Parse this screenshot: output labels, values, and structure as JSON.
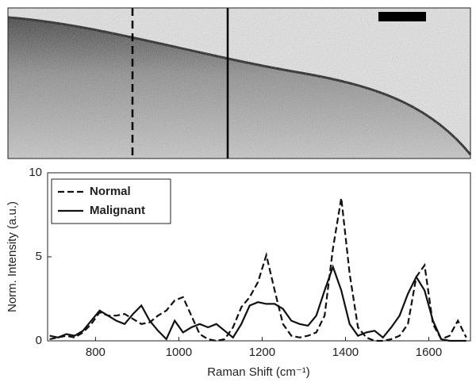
{
  "chart_data": {
    "type": "line",
    "xlabel": "Raman Shift (cm⁻¹)",
    "ylabel": "Norm. Intensity (a.u.)",
    "x": [
      690,
      710,
      730,
      750,
      770,
      790,
      810,
      830,
      850,
      870,
      890,
      910,
      930,
      950,
      970,
      990,
      1010,
      1030,
      1050,
      1070,
      1090,
      1110,
      1130,
      1150,
      1170,
      1190,
      1210,
      1230,
      1250,
      1270,
      1290,
      1310,
      1330,
      1350,
      1370,
      1390,
      1410,
      1430,
      1450,
      1470,
      1490,
      1510,
      1530,
      1550,
      1570,
      1590,
      1610,
      1630,
      1650,
      1670,
      1690
    ],
    "series": [
      {
        "name": "Normal",
        "color": "#111111",
        "dash": true,
        "values": [
          0.1,
          0.2,
          0.3,
          0.2,
          0.5,
          1.0,
          1.7,
          1.5,
          1.5,
          1.6,
          1.3,
          1.0,
          1.1,
          1.5,
          1.8,
          2.4,
          2.6,
          1.5,
          0.4,
          0.1,
          0.0,
          0.1,
          0.8,
          2.0,
          2.6,
          3.5,
          5.1,
          3.0,
          1.0,
          0.3,
          0.2,
          0.3,
          0.5,
          1.5,
          5.5,
          8.5,
          4.0,
          0.8,
          0.2,
          0.0,
          0.0,
          0.1,
          0.3,
          1.0,
          3.8,
          4.5,
          1.0,
          0.1,
          0.3,
          1.2,
          0.2
        ]
      },
      {
        "name": "Malignant",
        "color": "#111111",
        "dash": false,
        "values": [
          0.3,
          0.2,
          0.4,
          0.3,
          0.6,
          1.2,
          1.8,
          1.5,
          1.2,
          1.0,
          1.6,
          2.1,
          1.2,
          0.6,
          0.1,
          1.2,
          0.5,
          0.8,
          1.0,
          0.8,
          1.0,
          0.6,
          0.2,
          1.0,
          2.1,
          2.3,
          2.2,
          2.2,
          1.9,
          1.2,
          1.0,
          0.9,
          1.5,
          3.0,
          4.4,
          3.0,
          1.0,
          0.3,
          0.5,
          0.6,
          0.2,
          0.8,
          1.5,
          2.8,
          3.8,
          3.0,
          1.2,
          0.1,
          0.0,
          0.0,
          0.0
        ]
      }
    ],
    "xlim": [
      685,
      1700
    ],
    "ylim": [
      0,
      10
    ],
    "xticks": [
      800,
      1000,
      1200,
      1400,
      1600
    ],
    "yticks": [
      0,
      5,
      10
    ],
    "legend": "upper left"
  }
}
